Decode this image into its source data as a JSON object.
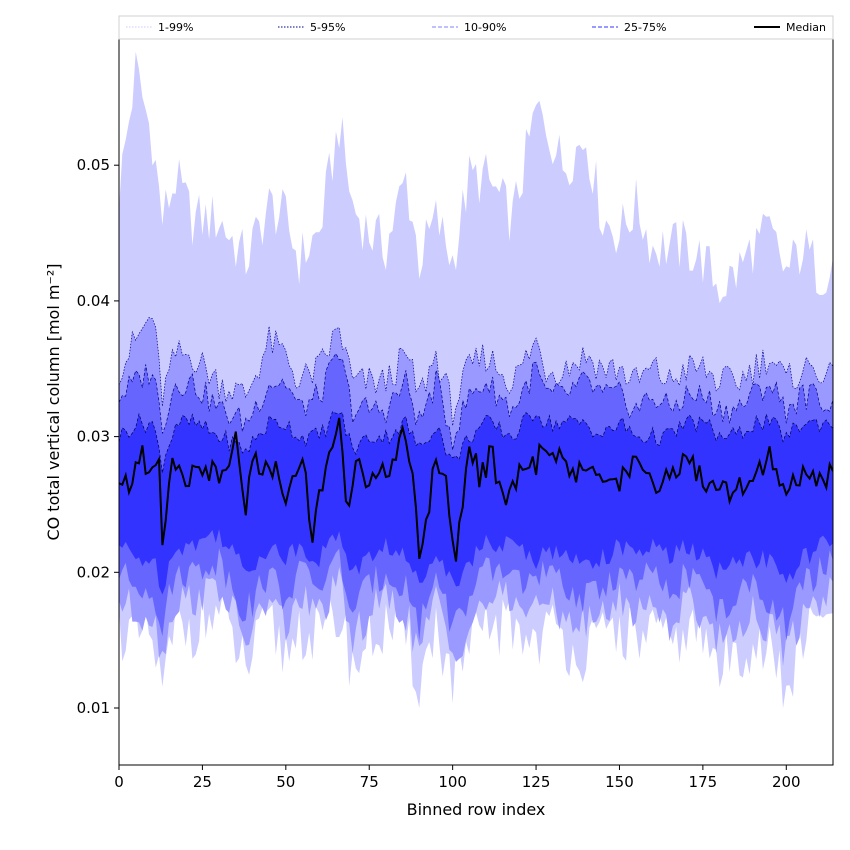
{
  "chart_data": {
    "type": "area",
    "title": "",
    "xlabel": "Binned row index",
    "ylabel": "CO total vertical column [mol m⁻²]",
    "xlim": [
      0,
      214
    ],
    "ylim": [
      0.0058,
      0.0593
    ],
    "x_ticks": [
      0,
      25,
      50,
      75,
      100,
      125,
      150,
      175,
      200
    ],
    "y_ticks": [
      0.01,
      0.02,
      0.03,
      0.04,
      0.05
    ],
    "x_tick_labels": [
      "0",
      "25",
      "50",
      "75",
      "100",
      "125",
      "150",
      "175",
      "200"
    ],
    "y_tick_labels": [
      "0.01",
      "0.02",
      "0.03",
      "0.04",
      "0.05"
    ],
    "n_bins": 214,
    "legend_position": "top, horizontal above plot",
    "legend": [
      {
        "label": "1-99%",
        "color": "#ccccff",
        "style": "dotted"
      },
      {
        "label": "5-95%",
        "color": "#00008b",
        "style": "dotted"
      },
      {
        "label": "10-90%",
        "color": "#8080ff",
        "style": "dashed"
      },
      {
        "label": "25-75%",
        "color": "#3333ff",
        "style": "dashed"
      },
      {
        "label": "Median",
        "color": "#000000",
        "style": "solid"
      }
    ],
    "series": [
      {
        "name": "1-99%",
        "fill": "#ccccff",
        "anchors_x": [
          0,
          5,
          10,
          13,
          17,
          22,
          30,
          38,
          45,
          50,
          54,
          60,
          66,
          70,
          75,
          80,
          86,
          90,
          95,
          100,
          105,
          110,
          118,
          125,
          128,
          133,
          140,
          145,
          150,
          155,
          160,
          165,
          170,
          175,
          180,
          185,
          190,
          195,
          200,
          205,
          210,
          214
        ],
        "upper": [
          0.048,
          0.057,
          0.052,
          0.046,
          0.049,
          0.046,
          0.046,
          0.043,
          0.047,
          0.046,
          0.043,
          0.045,
          0.053,
          0.047,
          0.045,
          0.044,
          0.049,
          0.043,
          0.046,
          0.043,
          0.049,
          0.049,
          0.046,
          0.054,
          0.053,
          0.05,
          0.052,
          0.046,
          0.045,
          0.047,
          0.044,
          0.044,
          0.044,
          0.043,
          0.041,
          0.042,
          0.044,
          0.045,
          0.042,
          0.044,
          0.042,
          0.043
        ],
        "lower": [
          0.016,
          0.015,
          0.015,
          0.011,
          0.016,
          0.016,
          0.017,
          0.013,
          0.016,
          0.014,
          0.016,
          0.015,
          0.017,
          0.013,
          0.015,
          0.016,
          0.015,
          0.012,
          0.016,
          0.012,
          0.014,
          0.016,
          0.016,
          0.015,
          0.016,
          0.015,
          0.014,
          0.015,
          0.016,
          0.015,
          0.016,
          0.014,
          0.016,
          0.015,
          0.013,
          0.014,
          0.015,
          0.014,
          0.011,
          0.015,
          0.016,
          0.018
        ]
      },
      {
        "name": "5-95%",
        "fill": "#9999ff",
        "anchors_x": [
          0,
          5,
          10,
          13,
          17,
          22,
          30,
          38,
          45,
          50,
          54,
          60,
          66,
          70,
          75,
          80,
          86,
          90,
          95,
          100,
          105,
          110,
          118,
          125,
          128,
          133,
          140,
          145,
          150,
          155,
          160,
          165,
          170,
          175,
          180,
          185,
          190,
          195,
          200,
          205,
          210,
          214
        ],
        "upper": [
          0.035,
          0.037,
          0.039,
          0.033,
          0.036,
          0.036,
          0.034,
          0.033,
          0.037,
          0.036,
          0.034,
          0.035,
          0.038,
          0.034,
          0.034,
          0.034,
          0.036,
          0.033,
          0.036,
          0.032,
          0.035,
          0.036,
          0.034,
          0.037,
          0.035,
          0.035,
          0.036,
          0.035,
          0.035,
          0.034,
          0.035,
          0.034,
          0.035,
          0.035,
          0.034,
          0.034,
          0.035,
          0.036,
          0.034,
          0.035,
          0.035,
          0.034
        ],
        "lower": [
          0.018,
          0.017,
          0.017,
          0.014,
          0.018,
          0.018,
          0.019,
          0.015,
          0.018,
          0.016,
          0.018,
          0.017,
          0.019,
          0.015,
          0.017,
          0.018,
          0.017,
          0.014,
          0.018,
          0.014,
          0.016,
          0.018,
          0.018,
          0.017,
          0.018,
          0.017,
          0.016,
          0.017,
          0.018,
          0.017,
          0.018,
          0.016,
          0.018,
          0.017,
          0.015,
          0.016,
          0.017,
          0.016,
          0.014,
          0.017,
          0.018,
          0.019
        ]
      },
      {
        "name": "10-90%",
        "fill": "#6666ff",
        "anchors_x": [
          0,
          5,
          10,
          13,
          17,
          22,
          30,
          38,
          45,
          50,
          54,
          60,
          66,
          70,
          75,
          80,
          86,
          90,
          95,
          100,
          105,
          110,
          118,
          125,
          128,
          133,
          140,
          145,
          150,
          155,
          160,
          165,
          170,
          175,
          180,
          185,
          190,
          195,
          200,
          205,
          210,
          214
        ],
        "upper": [
          0.033,
          0.034,
          0.035,
          0.031,
          0.034,
          0.034,
          0.032,
          0.031,
          0.034,
          0.034,
          0.032,
          0.033,
          0.036,
          0.032,
          0.032,
          0.032,
          0.034,
          0.031,
          0.034,
          0.03,
          0.033,
          0.034,
          0.032,
          0.035,
          0.033,
          0.033,
          0.034,
          0.033,
          0.033,
          0.032,
          0.033,
          0.032,
          0.033,
          0.033,
          0.032,
          0.032,
          0.033,
          0.034,
          0.032,
          0.033,
          0.033,
          0.032
        ],
        "lower": [
          0.02,
          0.019,
          0.019,
          0.016,
          0.02,
          0.02,
          0.021,
          0.017,
          0.02,
          0.018,
          0.02,
          0.019,
          0.021,
          0.017,
          0.019,
          0.02,
          0.019,
          0.016,
          0.02,
          0.016,
          0.018,
          0.02,
          0.02,
          0.019,
          0.02,
          0.019,
          0.018,
          0.019,
          0.02,
          0.019,
          0.02,
          0.018,
          0.02,
          0.019,
          0.017,
          0.018,
          0.019,
          0.018,
          0.016,
          0.019,
          0.02,
          0.021
        ]
      },
      {
        "name": "25-75%",
        "fill": "#3333ff",
        "anchors_x": [
          0,
          5,
          10,
          13,
          17,
          22,
          30,
          38,
          45,
          50,
          54,
          60,
          66,
          70,
          75,
          80,
          86,
          90,
          95,
          100,
          105,
          110,
          118,
          125,
          128,
          133,
          140,
          145,
          150,
          155,
          160,
          165,
          170,
          175,
          180,
          185,
          190,
          195,
          200,
          205,
          210,
          214
        ],
        "upper": [
          0.03,
          0.031,
          0.031,
          0.028,
          0.031,
          0.031,
          0.03,
          0.029,
          0.031,
          0.031,
          0.03,
          0.03,
          0.032,
          0.029,
          0.03,
          0.03,
          0.031,
          0.029,
          0.031,
          0.028,
          0.03,
          0.031,
          0.03,
          0.032,
          0.031,
          0.031,
          0.031,
          0.03,
          0.031,
          0.03,
          0.03,
          0.03,
          0.031,
          0.031,
          0.03,
          0.03,
          0.031,
          0.031,
          0.03,
          0.031,
          0.031,
          0.031
        ],
        "lower": [
          0.022,
          0.021,
          0.021,
          0.019,
          0.022,
          0.022,
          0.023,
          0.02,
          0.022,
          0.021,
          0.022,
          0.021,
          0.023,
          0.02,
          0.021,
          0.022,
          0.021,
          0.019,
          0.022,
          0.019,
          0.021,
          0.022,
          0.022,
          0.021,
          0.022,
          0.021,
          0.021,
          0.021,
          0.022,
          0.021,
          0.022,
          0.021,
          0.022,
          0.021,
          0.02,
          0.021,
          0.021,
          0.021,
          0.019,
          0.021,
          0.022,
          0.022
        ]
      },
      {
        "name": "Median",
        "color": "#000000",
        "anchors_x": [
          0,
          3,
          6,
          9,
          12,
          13,
          16,
          20,
          25,
          30,
          35,
          38,
          40,
          45,
          50,
          55,
          58,
          61,
          66,
          68,
          72,
          75,
          80,
          85,
          88,
          90,
          95,
          98,
          101,
          105,
          108,
          112,
          115,
          120,
          125,
          130,
          135,
          140,
          145,
          150,
          155,
          160,
          165,
          170,
          175,
          180,
          185,
          190,
          195,
          200,
          205,
          210,
          214
        ],
        "values": [
          0.0265,
          0.0262,
          0.029,
          0.0268,
          0.028,
          0.022,
          0.0285,
          0.027,
          0.028,
          0.0268,
          0.0295,
          0.024,
          0.0285,
          0.028,
          0.026,
          0.0285,
          0.0225,
          0.027,
          0.032,
          0.025,
          0.028,
          0.026,
          0.0275,
          0.03,
          0.0275,
          0.0215,
          0.028,
          0.027,
          0.0215,
          0.029,
          0.027,
          0.029,
          0.025,
          0.027,
          0.028,
          0.0295,
          0.027,
          0.028,
          0.026,
          0.027,
          0.0285,
          0.026,
          0.0275,
          0.0285,
          0.027,
          0.0265,
          0.026,
          0.0275,
          0.0285,
          0.026,
          0.027,
          0.0265,
          0.0275
        ],
        "values_precision": "approx 0.0005"
      }
    ]
  }
}
